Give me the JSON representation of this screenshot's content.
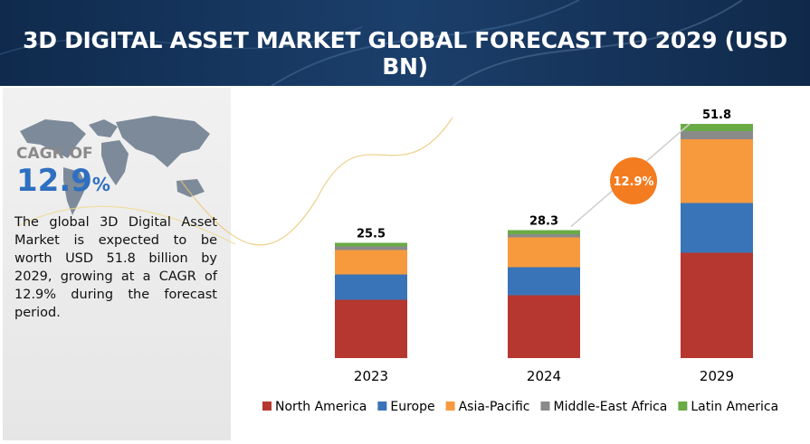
{
  "header": {
    "title": "3D DIGITAL ASSET MARKET GLOBAL FORECAST TO 2029 (USD BN)"
  },
  "sidebar": {
    "cagr_label": "CAGR OF",
    "cagr_value": "12.9",
    "cagr_unit": "%",
    "description": "The global 3D Digital Asset Market is expected to be worth USD 51.8 billion by 2029, growing at a CAGR of 12.9% during the forecast period."
  },
  "chart_data": {
    "type": "bar",
    "stacked": true,
    "categories": [
      "2023",
      "2024",
      "2029"
    ],
    "series": [
      {
        "name": "North America",
        "color": "#b5372f",
        "values": [
          12.9,
          13.9,
          23.3
        ]
      },
      {
        "name": "Europe",
        "color": "#3a74b8",
        "values": [
          5.6,
          6.2,
          11.0
        ]
      },
      {
        "name": "Asia-Pacific",
        "color": "#f79a3e",
        "values": [
          5.4,
          6.6,
          14.1
        ]
      },
      {
        "name": "Middle-East Africa",
        "color": "#8a8a8a",
        "values": [
          0.8,
          0.7,
          1.8
        ]
      },
      {
        "name": "Latin America",
        "color": "#6aab45",
        "values": [
          0.8,
          0.9,
          1.6
        ]
      }
    ],
    "totals": [
      25.5,
      28.3,
      51.8
    ],
    "annotation": "12.9%",
    "legend": "bottom"
  }
}
